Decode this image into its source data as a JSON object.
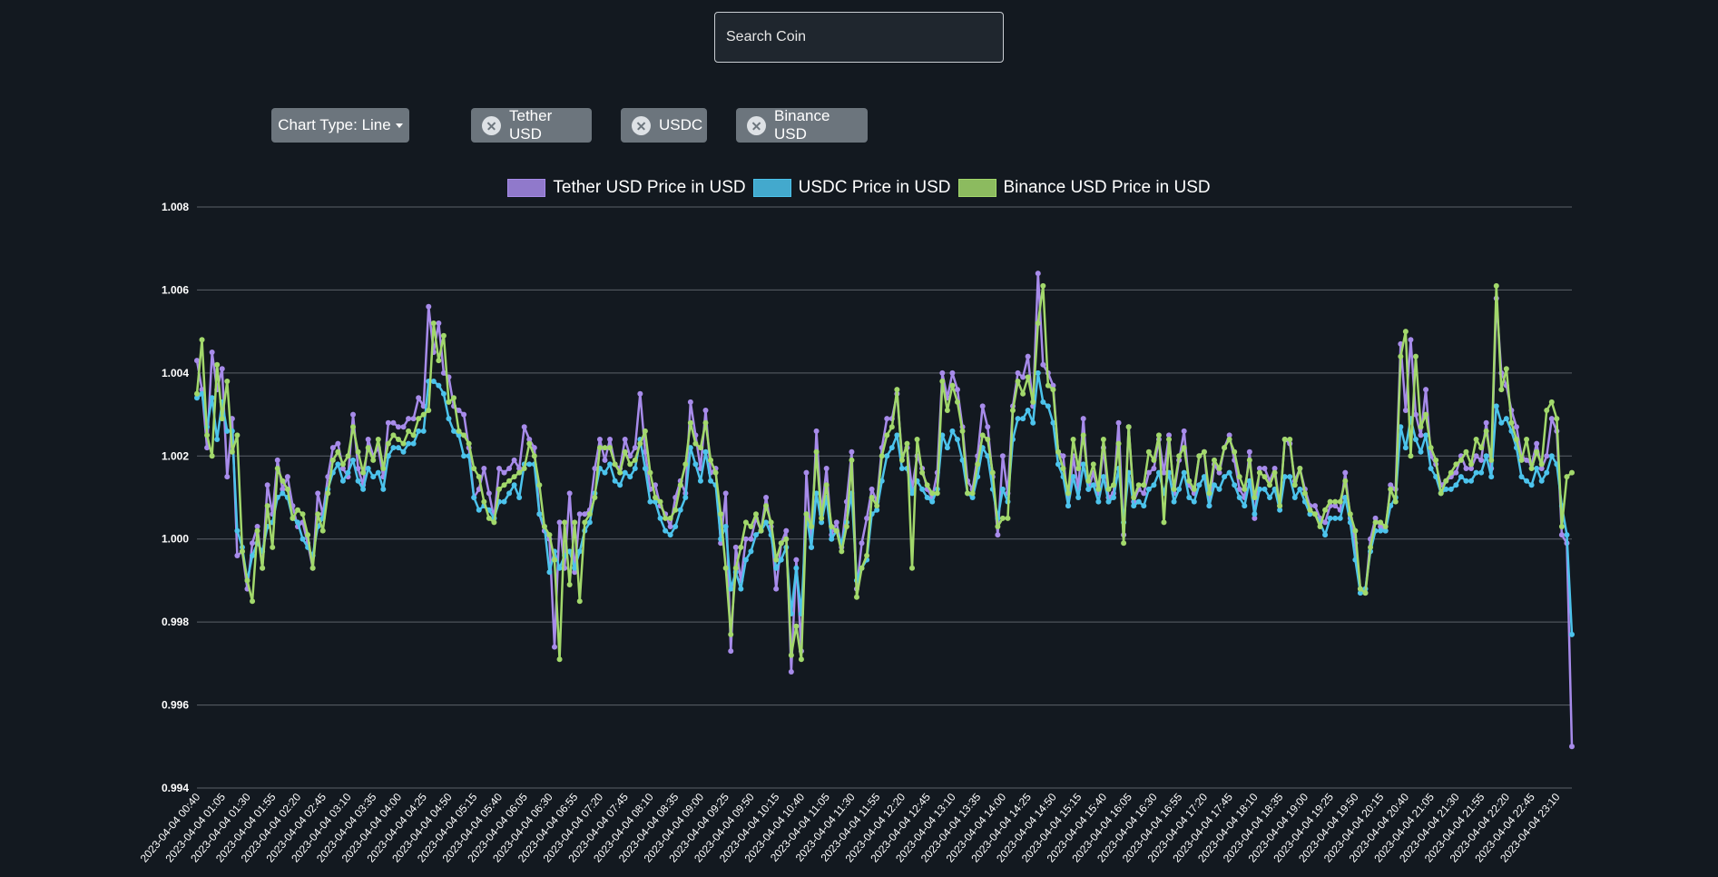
{
  "search": {
    "placeholder": "Search Coin",
    "value": ""
  },
  "controls": {
    "chart_type_label": "Chart Type: Line",
    "chips": [
      {
        "label": "Tether USD"
      },
      {
        "label": "USDC"
      },
      {
        "label": "Binance USD"
      }
    ]
  },
  "chart_data": {
    "type": "line",
    "title": "",
    "xlabel": "",
    "ylabel": "",
    "ylim": [
      0.994,
      1.008
    ],
    "yticks": [
      "1.008",
      "1.006",
      "1.004",
      "1.002",
      "1.000",
      "0.998",
      "0.996",
      "0.994"
    ],
    "grid": "horizontal",
    "legend_position": "top-center",
    "x_start": "2023-04-04 00:40",
    "x_step_minutes": 5,
    "x_label_every": 5,
    "series": [
      {
        "name": "Tether USD Price in USD",
        "color": "#a78bea",
        "values": [
          1.0043,
          1.0036,
          1.0022,
          1.0045,
          1.0036,
          1.0041,
          1.0015,
          1.0029,
          0.9996,
          0.9997,
          0.9988,
          0.9999,
          1.0003,
          0.9993,
          1.0013,
          1.0006,
          1.0019,
          1.0012,
          1.0015,
          1.0008,
          1.0003,
          1.0004,
          0.9999,
          0.9993,
          1.0011,
          1.0006,
          1.0015,
          1.0022,
          1.0023,
          1.0017,
          1.0015,
          1.003,
          1.0017,
          1.0013,
          1.0024,
          1.002,
          1.0022,
          1.0015,
          1.0028,
          1.0028,
          1.0027,
          1.0027,
          1.0029,
          1.0029,
          1.0034,
          1.0032,
          1.0056,
          1.0045,
          1.0052,
          1.004,
          1.0039,
          1.0032,
          1.0031,
          1.003,
          1.0022,
          1.001,
          1.0012,
          1.0017,
          1.0011,
          1.0005,
          1.0017,
          1.0016,
          1.0017,
          1.0019,
          1.0017,
          1.0027,
          1.0024,
          1.0022,
          1.0006,
          1.0002,
          1.0,
          0.9974,
          1.0004,
          0.9993,
          1.0011,
          0.9992,
          1.0006,
          1.0006,
          1.0007,
          1.0017,
          1.0024,
          1.0019,
          1.0024,
          1.0018,
          1.0017,
          1.0024,
          1.002,
          1.0022,
          1.0035,
          1.0021,
          1.0012,
          1.0013,
          1.0008,
          1.0006,
          1.0003,
          1.001,
          1.0014,
          1.0011,
          1.0033,
          1.0025,
          1.0017,
          1.0031,
          1.0016,
          1.0017,
          0.9999,
          1.0011,
          0.9973,
          0.9998,
          0.999,
          1.0,
          1.0,
          1.0005,
          1.0002,
          1.001,
          1.0003,
          0.9988,
          0.9999,
          1.0002,
          0.9968,
          0.9995,
          0.9973,
          1.0016,
          0.9998,
          1.0026,
          1.0006,
          1.0017,
          1.0001,
          1.0004,
          0.9998,
          1.0009,
          1.0021,
          0.9988,
          0.9999,
          1.0005,
          1.0012,
          1.0009,
          1.0022,
          1.0029,
          1.0029,
          1.0035,
          1.002,
          1.0022,
          1.0012,
          1.002,
          1.0017,
          1.0012,
          1.001,
          1.0016,
          1.004,
          1.0034,
          1.004,
          1.0036,
          1.0027,
          1.0014,
          1.0012,
          1.002,
          1.0032,
          1.0027,
          1.0015,
          1.0001,
          1.002,
          1.0011,
          1.0032,
          1.004,
          1.0039,
          1.0044,
          1.0032,
          1.0064,
          1.0042,
          1.004,
          1.0037,
          1.0021,
          1.002,
          1.0008,
          1.002,
          1.0012,
          1.0029,
          1.0012,
          1.0016,
          1.0011,
          1.0022,
          1.001,
          1.0011,
          1.0028,
          1.0001,
          1.0027,
          1.0009,
          1.0012,
          1.0011,
          1.0016,
          1.0017,
          1.0024,
          1.0016,
          1.0025,
          1.0011,
          1.0019,
          1.0026,
          1.0013,
          1.0011,
          1.002,
          1.0021,
          1.0008,
          1.0018,
          1.0016,
          1.0022,
          1.0025,
          1.0019,
          1.0012,
          1.001,
          1.0021,
          1.0005,
          1.0017,
          1.0017,
          1.0014,
          1.0017,
          1.0008,
          1.0024,
          1.0023,
          1.0014,
          1.0017,
          1.0012,
          1.0008,
          1.0008,
          1.0005,
          1.0004,
          1.0008,
          1.0008,
          1.0007,
          1.0016,
          1.0005,
          0.9999,
          0.9988,
          0.9987,
          1.0,
          1.0005,
          1.0003,
          1.0002,
          1.0013,
          1.0012,
          1.0047,
          1.0031,
          1.0048,
          1.003,
          1.0025,
          1.0036,
          1.002,
          1.0018,
          1.0013,
          1.0014,
          1.0015,
          1.0016,
          1.002,
          1.0017,
          1.0017,
          1.002,
          1.0019,
          1.0028,
          1.0017,
          1.0058,
          1.004,
          1.0037,
          1.0031,
          1.0027,
          1.002,
          1.0019,
          1.0018,
          1.0023,
          1.0017,
          1.002,
          1.0029,
          1.0026,
          1.0001,
          0.9999,
          0.995
        ]
      },
      {
        "name": "USDC Price in USD",
        "color": "#4cc3ec",
        "values": [
          1.0034,
          1.0035,
          1.0027,
          1.0034,
          1.0024,
          1.0033,
          1.0026,
          1.0026,
          1.0002,
          0.9998,
          0.999,
          0.9996,
          0.9999,
          0.9997,
          1.0003,
          1.0004,
          1.001,
          1.0011,
          1.001,
          1.0005,
          1.0004,
          1.0,
          0.9998,
          0.9996,
          1.0003,
          1.0005,
          1.0012,
          1.0016,
          1.0018,
          1.0014,
          1.0016,
          1.0019,
          1.0014,
          1.0012,
          1.0017,
          1.0015,
          1.0016,
          1.0012,
          1.002,
          1.0022,
          1.0022,
          1.0021,
          1.0023,
          1.0023,
          1.0026,
          1.0026,
          1.0038,
          1.0038,
          1.0037,
          1.0035,
          1.0029,
          1.0026,
          1.0025,
          1.002,
          1.002,
          1.001,
          1.0007,
          1.0008,
          1.0007,
          1.0005,
          1.0009,
          1.0009,
          1.0011,
          1.0013,
          1.001,
          1.0018,
          1.0018,
          1.0018,
          1.0006,
          1.0003,
          0.9992,
          0.9997,
          0.9993,
          0.9996,
          0.9997,
          0.9993,
          0.9997,
          1.0002,
          1.0004,
          1.0011,
          1.0017,
          1.0016,
          1.0018,
          1.0014,
          1.0013,
          1.0016,
          1.0015,
          1.0017,
          1.0024,
          1.0017,
          1.0009,
          1.0009,
          1.0005,
          1.0002,
          1.0001,
          1.0003,
          1.0007,
          1.001,
          1.0022,
          1.0018,
          1.0014,
          1.0021,
          1.0014,
          1.0013,
          1.0,
          1.0003,
          0.9988,
          0.9992,
          0.9988,
          0.9995,
          0.9997,
          1.0001,
          1.0002,
          1.0004,
          1.0001,
          0.9993,
          0.9995,
          0.9998,
          0.9982,
          0.9993,
          0.9982,
          1.0006,
          0.9998,
          1.0011,
          1.0004,
          1.001,
          1.0,
          1.0002,
          0.9999,
          1.0004,
          1.0011,
          0.999,
          0.9993,
          0.9995,
          1.0006,
          1.0007,
          1.0014,
          1.002,
          1.0022,
          1.0025,
          1.0017,
          1.0017,
          1.0011,
          1.0014,
          1.0012,
          1.001,
          1.0009,
          1.0012,
          1.0025,
          1.0022,
          1.0026,
          1.0024,
          1.0019,
          1.0011,
          1.001,
          1.0015,
          1.0022,
          1.002,
          1.0012,
          1.0005,
          1.0012,
          1.0009,
          1.0024,
          1.0029,
          1.0029,
          1.0031,
          1.0028,
          1.004,
          1.0033,
          1.0032,
          1.0028,
          1.0018,
          1.0015,
          1.0008,
          1.0015,
          1.001,
          1.0018,
          1.0012,
          1.0013,
          1.0009,
          1.0015,
          1.0009,
          1.001,
          1.0017,
          1.0004,
          1.0016,
          1.0008,
          1.0009,
          1.0008,
          1.0012,
          1.0013,
          1.0016,
          1.0011,
          1.0016,
          1.0009,
          1.0012,
          1.0016,
          1.001,
          1.0009,
          1.0013,
          1.0015,
          1.0008,
          1.0013,
          1.0012,
          1.0015,
          1.0016,
          1.0013,
          1.001,
          1.0008,
          1.0014,
          1.0006,
          1.0012,
          1.0012,
          1.001,
          1.0012,
          1.0007,
          1.0015,
          1.0015,
          1.001,
          1.0012,
          1.0009,
          1.0006,
          1.0006,
          1.0004,
          1.0001,
          1.0005,
          1.0005,
          1.0005,
          1.001,
          1.0004,
          0.9995,
          0.9987,
          0.9988,
          0.9997,
          1.0002,
          1.0002,
          1.0002,
          1.0008,
          1.001,
          1.0027,
          1.0022,
          1.0029,
          1.0024,
          1.0021,
          1.0025,
          1.0017,
          1.0015,
          1.0011,
          1.0012,
          1.0012,
          1.0013,
          1.0015,
          1.0014,
          1.0014,
          1.0016,
          1.0016,
          1.002,
          1.0015,
          1.0032,
          1.0028,
          1.0029,
          1.0026,
          1.0022,
          1.0015,
          1.0014,
          1.0013,
          1.0017,
          1.0014,
          1.0016,
          1.002,
          1.0018,
          1.0008,
          1.0001,
          0.9977
        ]
      },
      {
        "name": "Binance USD Price in USD",
        "color": "#a2d86b",
        "values": [
          1.0035,
          1.0048,
          1.0025,
          1.002,
          1.0042,
          1.0029,
          1.0038,
          1.0021,
          1.0025,
          0.9997,
          0.999,
          0.9985,
          1.0002,
          0.9993,
          1.0008,
          0.9998,
          1.0017,
          1.0014,
          1.0012,
          1.0005,
          1.0007,
          1.0006,
          1.0001,
          0.9993,
          1.0006,
          1.0002,
          1.0011,
          1.0019,
          1.0021,
          1.0018,
          1.002,
          1.0027,
          1.0021,
          1.0016,
          1.0022,
          1.0019,
          1.0024,
          1.0017,
          1.0023,
          1.0025,
          1.0024,
          1.0023,
          1.0026,
          1.0025,
          1.0029,
          1.003,
          1.0031,
          1.0052,
          1.0043,
          1.0049,
          1.0033,
          1.0034,
          1.0026,
          1.0025,
          1.0023,
          1.0017,
          1.0015,
          1.0009,
          1.0005,
          1.0004,
          1.0012,
          1.0013,
          1.0014,
          1.0015,
          1.0016,
          1.0017,
          1.0023,
          1.002,
          1.0013,
          1.0003,
          1.0001,
          0.9995,
          0.9971,
          1.0004,
          0.9989,
          1.0004,
          0.9985,
          1.0004,
          1.0006,
          1.001,
          1.0022,
          1.0022,
          1.0022,
          1.0018,
          1.0016,
          1.0021,
          1.0018,
          1.0019,
          1.0023,
          1.0026,
          1.0016,
          1.001,
          1.0009,
          1.0005,
          1.0005,
          1.0007,
          1.0013,
          1.0018,
          1.0028,
          1.0023,
          1.0022,
          1.0028,
          1.0019,
          1.0016,
          1.0006,
          0.9993,
          0.9977,
          0.9993,
          0.9998,
          1.0004,
          1.0003,
          1.0006,
          1.0002,
          1.0008,
          1.0004,
          0.9995,
          0.9999,
          1.0,
          0.9972,
          0.9979,
          0.9971,
          1.0006,
          1.0003,
          1.0021,
          1.0005,
          1.0013,
          1.0003,
          1.0002,
          0.9997,
          1.0003,
          1.0019,
          0.9986,
          0.9993,
          0.9996,
          1.001,
          1.0008,
          1.002,
          1.0025,
          1.0027,
          1.0036,
          1.0019,
          1.0023,
          0.9993,
          1.0024,
          1.0016,
          1.0013,
          1.0011,
          1.0011,
          1.0038,
          1.0031,
          1.0037,
          1.0033,
          1.0026,
          1.0011,
          1.0011,
          1.0018,
          1.0025,
          1.0024,
          1.0016,
          1.0003,
          1.0005,
          1.0005,
          1.0031,
          1.0038,
          1.0035,
          1.0039,
          1.0033,
          1.0052,
          1.0061,
          1.0037,
          1.0036,
          1.0021,
          1.0017,
          1.0011,
          1.0024,
          1.0017,
          1.0025,
          1.0014,
          1.0018,
          1.0012,
          1.0024,
          1.0012,
          1.0013,
          1.0023,
          0.9999,
          1.0027,
          1.001,
          1.0013,
          1.0013,
          1.0021,
          1.0019,
          1.0025,
          1.0004,
          1.0024,
          1.0012,
          1.002,
          1.0022,
          1.0014,
          1.0012,
          1.002,
          1.0021,
          1.0011,
          1.0019,
          1.0017,
          1.0022,
          1.0024,
          1.0021,
          1.0015,
          1.0012,
          1.0019,
          1.001,
          1.0016,
          1.0015,
          1.0013,
          1.0016,
          1.0008,
          1.0024,
          1.0024,
          1.0013,
          1.0017,
          1.0011,
          1.0007,
          1.0006,
          1.0003,
          1.0007,
          1.0009,
          1.0009,
          1.0009,
          1.0014,
          1.0006,
          1.0002,
          0.9988,
          0.9987,
          0.9998,
          1.0004,
          1.0004,
          1.0003,
          1.0012,
          1.0009,
          1.0044,
          1.005,
          1.002,
          1.0044,
          1.0027,
          1.003,
          1.0022,
          1.0019,
          1.0011,
          1.0014,
          1.0016,
          1.0018,
          1.0019,
          1.0021,
          1.0018,
          1.0024,
          1.0022,
          1.0026,
          1.0019,
          1.0061,
          1.0036,
          1.0041,
          1.0028,
          1.0024,
          1.0019,
          1.0024,
          1.0017,
          1.0021,
          1.0018,
          1.0031,
          1.0033,
          1.0029,
          1.0003,
          1.0015,
          1.0016
        ]
      }
    ]
  }
}
